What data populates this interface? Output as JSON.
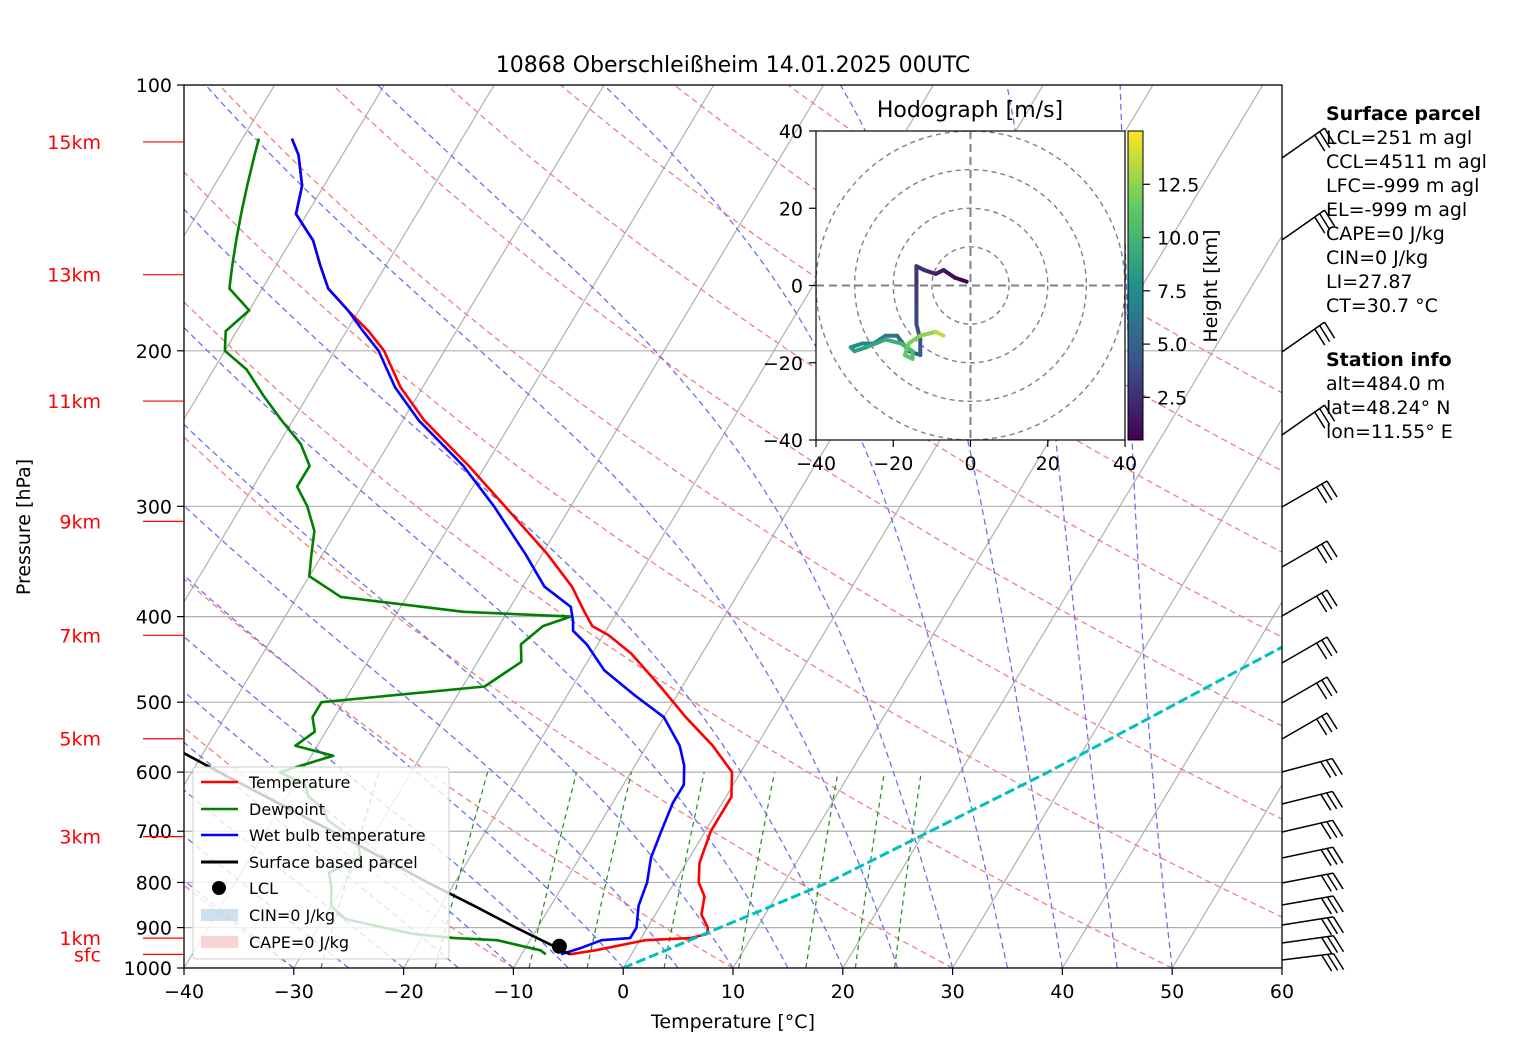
{
  "chart_data": {
    "type": "line",
    "title": "10868 Oberschleißheim 14.01.2025 00UTC",
    "xlabel": "Temperature [°C]",
    "ylabel": "Pressure [hPa]",
    "xlim": [
      -40,
      60
    ],
    "ylim": [
      1000,
      100
    ],
    "y_scale": "log",
    "skew": true,
    "grid": true,
    "x_ticks": [
      "−40",
      "−30",
      "−20",
      "−10",
      "0",
      "10",
      "20",
      "30",
      "40",
      "50",
      "60"
    ],
    "y_ticks": [
      "100",
      "200",
      "300",
      "400",
      "500",
      "600",
      "700",
      "800",
      "900",
      "1000"
    ],
    "height_labels": [
      {
        "label": "sfc",
        "p": 965
      },
      {
        "label": "1km",
        "p": 925
      },
      {
        "label": "3km",
        "p": 710
      },
      {
        "label": "5km",
        "p": 550
      },
      {
        "label": "7km",
        "p": 420
      },
      {
        "label": "9km",
        "p": 312
      },
      {
        "label": "11km",
        "p": 228
      },
      {
        "label": "13km",
        "p": 164
      },
      {
        "label": "15km",
        "p": 116
      }
    ],
    "series": [
      {
        "name": "Temperature",
        "color": "#ff0000",
        "points": [
          [
            965,
            -5.6
          ],
          [
            955,
            -3.5
          ],
          [
            930,
            0.5
          ],
          [
            925,
            4.5
          ],
          [
            915,
            5.8
          ],
          [
            900,
            5.5
          ],
          [
            870,
            4.2
          ],
          [
            830,
            3.5
          ],
          [
            800,
            2.2
          ],
          [
            760,
            1.2
          ],
          [
            700,
            0.5
          ],
          [
            640,
            0.5
          ],
          [
            600,
            -0.8
          ],
          [
            560,
            -4
          ],
          [
            520,
            -8
          ],
          [
            480,
            -12
          ],
          [
            440,
            -16.5
          ],
          [
            420,
            -19.5
          ],
          [
            410,
            -21.5
          ],
          [
            395,
            -23
          ],
          [
            370,
            -25.5
          ],
          [
            340,
            -29.5
          ],
          [
            300,
            -36
          ],
          [
            270,
            -41.5
          ],
          [
            240,
            -48
          ],
          [
            220,
            -52
          ],
          [
            200,
            -55.5
          ],
          [
            190,
            -58
          ],
          [
            180,
            -61
          ],
          [
            170,
            -64
          ],
          [
            160,
            -66
          ],
          [
            150,
            -68
          ],
          [
            140,
            -71
          ],
          [
            130,
            -72
          ],
          [
            120,
            -74
          ],
          [
            115,
            -75.5
          ]
        ]
      },
      {
        "name": "Dewpoint",
        "color": "#008000",
        "points": [
          [
            965,
            -7.8
          ],
          [
            955,
            -8.5
          ],
          [
            945,
            -10.3
          ],
          [
            930,
            -13
          ],
          [
            925,
            -17
          ],
          [
            915,
            -21
          ],
          [
            900,
            -24
          ],
          [
            880,
            -28
          ],
          [
            850,
            -30
          ],
          [
            810,
            -31
          ],
          [
            780,
            -32
          ],
          [
            750,
            -30
          ],
          [
            720,
            -31
          ],
          [
            700,
            -33
          ],
          [
            680,
            -35
          ],
          [
            660,
            -36
          ],
          [
            640,
            -38
          ],
          [
            620,
            -39
          ],
          [
            600,
            -42
          ],
          [
            575,
            -38
          ],
          [
            560,
            -42
          ],
          [
            540,
            -41
          ],
          [
            520,
            -42
          ],
          [
            500,
            -42
          ],
          [
            480,
            -28
          ],
          [
            450,
            -26
          ],
          [
            430,
            -27
          ],
          [
            410,
            -26
          ],
          [
            400,
            -24
          ],
          [
            395,
            -34
          ],
          [
            380,
            -46
          ],
          [
            360,
            -50
          ],
          [
            340,
            -51
          ],
          [
            320,
            -52
          ],
          [
            300,
            -54
          ],
          [
            285,
            -56
          ],
          [
            270,
            -56
          ],
          [
            255,
            -58
          ],
          [
            240,
            -61
          ],
          [
            225,
            -64
          ],
          [
            210,
            -67
          ],
          [
            200,
            -70
          ],
          [
            190,
            -71
          ],
          [
            180,
            -70
          ],
          [
            170,
            -73
          ],
          [
            160,
            -74
          ],
          [
            150,
            -75
          ],
          [
            140,
            -76
          ],
          [
            130,
            -77
          ],
          [
            120,
            -78
          ],
          [
            115,
            -78.5
          ]
        ]
      },
      {
        "name": "Wet bulb temperature",
        "color": "#0000ff",
        "points": [
          [
            965,
            -6.4
          ],
          [
            950,
            -5
          ],
          [
            930,
            -3.5
          ],
          [
            925,
            -1
          ],
          [
            900,
            -1
          ],
          [
            850,
            -2
          ],
          [
            800,
            -2.5
          ],
          [
            750,
            -3.5
          ],
          [
            700,
            -4
          ],
          [
            650,
            -4.5
          ],
          [
            620,
            -4.5
          ],
          [
            590,
            -5.5
          ],
          [
            560,
            -7
          ],
          [
            520,
            -10
          ],
          [
            490,
            -14
          ],
          [
            460,
            -18
          ],
          [
            430,
            -21
          ],
          [
            415,
            -23
          ],
          [
            405,
            -23.5
          ],
          [
            390,
            -24.5
          ],
          [
            370,
            -28
          ],
          [
            340,
            -31.5
          ],
          [
            300,
            -37
          ],
          [
            270,
            -42
          ],
          [
            240,
            -48.5
          ],
          [
            220,
            -52.5
          ],
          [
            200,
            -56
          ],
          [
            190,
            -58.5
          ],
          [
            180,
            -61
          ],
          [
            170,
            -64
          ],
          [
            160,
            -66
          ],
          [
            150,
            -68
          ],
          [
            140,
            -71
          ],
          [
            130,
            -72
          ],
          [
            120,
            -74
          ],
          [
            115,
            -75.5
          ]
        ]
      },
      {
        "name": "Surface based parcel",
        "color": "#000000",
        "points": [
          [
            965,
            -5.6
          ],
          [
            950,
            -7
          ],
          [
            900,
            -12
          ],
          [
            850,
            -17
          ],
          [
            800,
            -22.5
          ],
          [
            750,
            -28
          ],
          [
            700,
            -34
          ],
          [
            650,
            -40.5
          ],
          [
            600,
            -47.5
          ],
          [
            550,
            -55
          ],
          [
            500,
            -63
          ],
          [
            450,
            -72
          ],
          [
            400,
            -81
          ],
          [
            345,
            -92
          ]
        ]
      },
      {
        "name": "CCL line",
        "color": "#00bfbf",
        "points": [
          [
            1000,
            0
          ],
          [
            800,
            14
          ],
          [
            600,
            28
          ],
          [
            400,
            46
          ],
          [
            200,
            72
          ],
          [
            130,
            92
          ]
        ]
      }
    ],
    "lcl": {
      "name": "LCL",
      "p": 945,
      "t": -7
    },
    "legend": {
      "placement": "lower-left",
      "entries": [
        "Temperature",
        "Dewpoint",
        "Wet bulb temperature",
        "Surface based parcel",
        "LCL",
        "CIN=0 J/kg",
        "CAPE=0 J/kg"
      ]
    },
    "wind_barbs_present": true,
    "hodograph": {
      "title": "Hodograph [m/s]",
      "xlim": [
        -40,
        40
      ],
      "ylim": [
        -40,
        40
      ],
      "ticks": [
        "−40",
        "−20",
        "0",
        "20",
        "40"
      ],
      "colorbar_label": "Height [km]",
      "colorbar_ticks": [
        "2.5",
        "5.0",
        "7.5",
        "10.0",
        "12.5"
      ],
      "colorbar_range": [
        0.5,
        15
      ],
      "points": [
        [
          -1,
          1,
          0.5
        ],
        [
          -4,
          2,
          1
        ],
        [
          -7,
          4,
          1.5
        ],
        [
          -9,
          3,
          2
        ],
        [
          -12,
          4,
          2.5
        ],
        [
          -14,
          5,
          2.8
        ],
        [
          -14,
          0,
          3.2
        ],
        [
          -14,
          -5,
          3.5
        ],
        [
          -14,
          -10,
          4
        ],
        [
          -13,
          -14,
          4.5
        ],
        [
          -13,
          -18,
          5
        ],
        [
          -16,
          -17,
          5.5
        ],
        [
          -19,
          -13,
          6
        ],
        [
          -22,
          -13,
          6.5
        ],
        [
          -25,
          -15,
          7
        ],
        [
          -28,
          -15,
          7.5
        ],
        [
          -31,
          -16,
          8
        ],
        [
          -30,
          -17,
          8.5
        ],
        [
          -27,
          -16,
          9
        ],
        [
          -22,
          -14,
          9.5
        ],
        [
          -18,
          -15,
          10
        ],
        [
          -15,
          -17,
          10.5
        ],
        [
          -15,
          -19,
          11
        ],
        [
          -17,
          -18,
          11.5
        ],
        [
          -16,
          -15,
          12
        ],
        [
          -13,
          -13,
          12.5
        ],
        [
          -9,
          -12,
          13.5
        ],
        [
          -7,
          -13,
          14.5
        ]
      ]
    }
  },
  "surface_parcel": {
    "title": "Surface parcel",
    "lines": [
      "LCL=251 m agl",
      "CCL=4511 m agl",
      "LFC=-999 m agl",
      "EL=-999 m agl",
      "CAPE=0 J/kg",
      "CIN=0 J/kg",
      "LI=27.87",
      "CT=30.7 °C"
    ]
  },
  "station_info": {
    "title": "Station info",
    "lines": [
      "alt=484.0 m",
      "lat=48.24° N",
      "lon=11.55° E"
    ]
  }
}
